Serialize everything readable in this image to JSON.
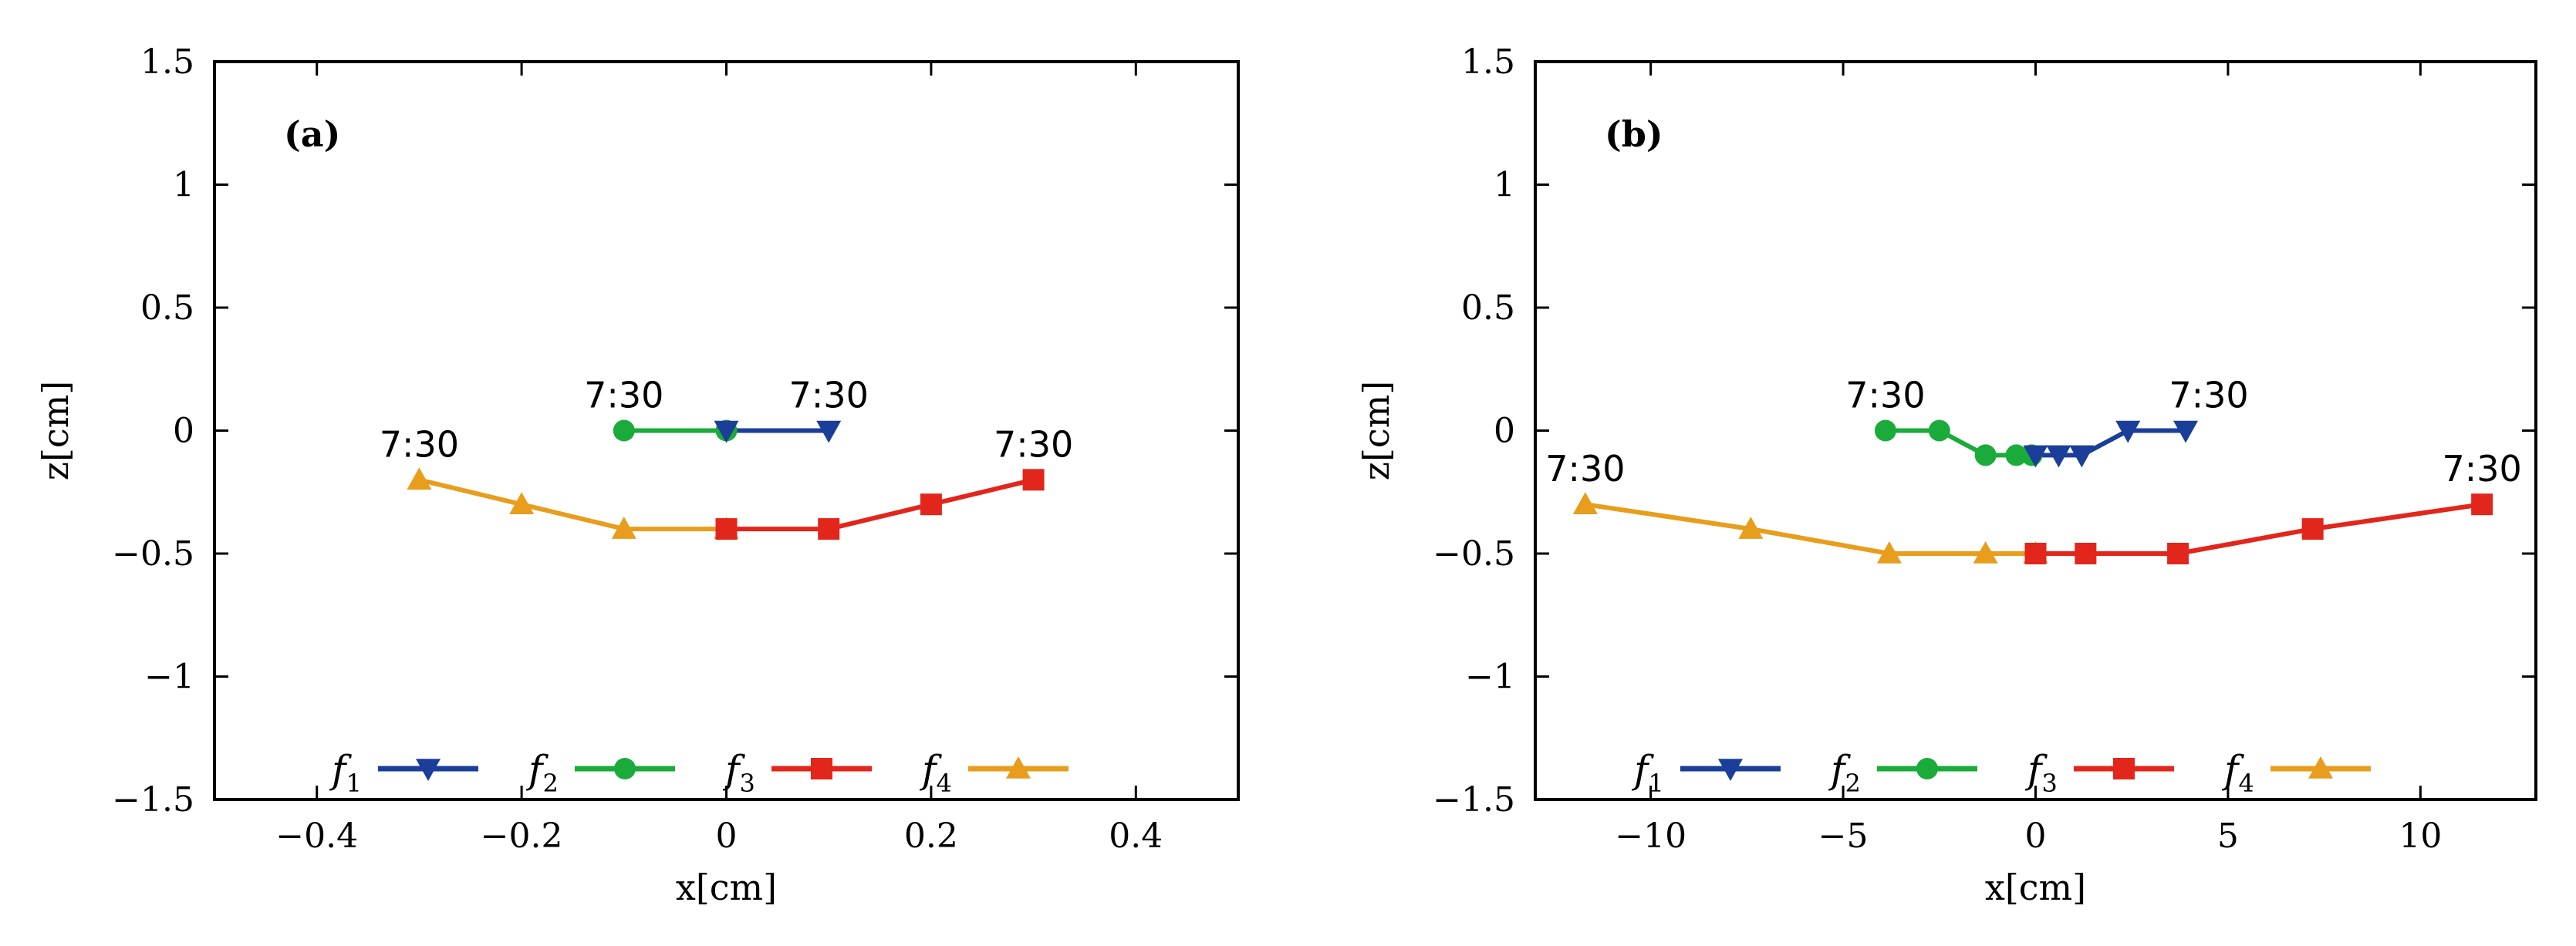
{
  "chart_data": [
    {
      "type": "line",
      "panel_label": "(a)",
      "xlabel": "x[cm]",
      "ylabel": "z[cm]",
      "xlim": [
        -0.5,
        0.5
      ],
      "ylim": [
        -1.5,
        1.5
      ],
      "xticks": [
        -0.4,
        -0.2,
        0,
        0.2,
        0.4
      ],
      "xtick_labels": [
        "−0.4",
        "−0.2",
        "0",
        "0.2",
        "0.4"
      ],
      "yticks": [
        -1.5,
        -1,
        -0.5,
        0,
        0.5,
        1,
        1.5
      ],
      "ytick_labels": [
        "−1.5",
        "−1",
        "−0.5",
        "0",
        "0.5",
        "1",
        "1.5"
      ],
      "series": [
        {
          "name": "f",
          "sub": "1",
          "color": "#1a3e99",
          "marker": "triangle-down",
          "x": [
            0,
            0.1
          ],
          "y": [
            0,
            0
          ]
        },
        {
          "name": "f",
          "sub": "2",
          "color": "#1aab3a",
          "marker": "circle",
          "x": [
            -0.1,
            0
          ],
          "y": [
            0,
            0
          ]
        },
        {
          "name": "f",
          "sub": "3",
          "color": "#e3261b",
          "marker": "square",
          "x": [
            0,
            0.1,
            0.2,
            0.3
          ],
          "y": [
            -0.4,
            -0.4,
            -0.3,
            -0.2
          ]
        },
        {
          "name": "f",
          "sub": "4",
          "color": "#e89d1c",
          "marker": "triangle-up",
          "x": [
            -0.3,
            -0.2,
            -0.1,
            0
          ],
          "y": [
            -0.2,
            -0.3,
            -0.4,
            -0.4
          ]
        }
      ],
      "annotations": [
        {
          "text": "7:30",
          "x": -0.3,
          "y": -0.2
        },
        {
          "text": "7:30",
          "x": -0.1,
          "y": 0
        },
        {
          "text": "7:30",
          "x": 0.1,
          "y": 0
        },
        {
          "text": "7:30",
          "x": 0.3,
          "y": -0.2
        }
      ],
      "legend_position": "bottom-center"
    },
    {
      "type": "line",
      "panel_label": "(b)",
      "xlabel": "x[cm]",
      "ylabel": "z[cm]",
      "xlim": [
        -13,
        13
      ],
      "ylim": [
        -1.5,
        1.5
      ],
      "xticks": [
        -10,
        -5,
        0,
        5,
        10
      ],
      "xtick_labels": [
        "−10",
        "−5",
        "0",
        "5",
        "10"
      ],
      "yticks": [
        -1.5,
        -1,
        -0.5,
        0,
        0.5,
        1,
        1.5
      ],
      "ytick_labels": [
        "−1.5",
        "−1",
        "−0.5",
        "0",
        "0.5",
        "1",
        "1.5"
      ],
      "series": [
        {
          "name": "f",
          "sub": "1",
          "color": "#1a3e99",
          "marker": "triangle-down",
          "x": [
            0,
            0.6,
            1.2,
            2.4,
            3.9
          ],
          "y": [
            -0.1,
            -0.1,
            -0.1,
            0,
            0
          ]
        },
        {
          "name": "f",
          "sub": "2",
          "color": "#1aab3a",
          "marker": "circle",
          "x": [
            -3.9,
            -2.5,
            -1.3,
            -0.5,
            -0.1
          ],
          "y": [
            0,
            0,
            -0.1,
            -0.1,
            -0.1
          ]
        },
        {
          "name": "f",
          "sub": "3",
          "color": "#e3261b",
          "marker": "square",
          "x": [
            0,
            1.3,
            3.7,
            7.2,
            11.6
          ],
          "y": [
            -0.5,
            -0.5,
            -0.5,
            -0.4,
            -0.3
          ]
        },
        {
          "name": "f",
          "sub": "4",
          "color": "#e89d1c",
          "marker": "triangle-up",
          "x": [
            -11.7,
            -7.4,
            -3.8,
            -1.3,
            0
          ],
          "y": [
            -0.3,
            -0.4,
            -0.5,
            -0.5,
            -0.5
          ]
        }
      ],
      "annotations": [
        {
          "text": "7:30",
          "x": -11.7,
          "y": -0.3
        },
        {
          "text": "7:30",
          "x": -3.9,
          "y": 0
        },
        {
          "text": "7:30",
          "x": 3.9,
          "y": 0
        },
        {
          "text": "7:30",
          "x": 11.6,
          "y": -0.3
        }
      ],
      "legend_position": "bottom-center"
    }
  ]
}
